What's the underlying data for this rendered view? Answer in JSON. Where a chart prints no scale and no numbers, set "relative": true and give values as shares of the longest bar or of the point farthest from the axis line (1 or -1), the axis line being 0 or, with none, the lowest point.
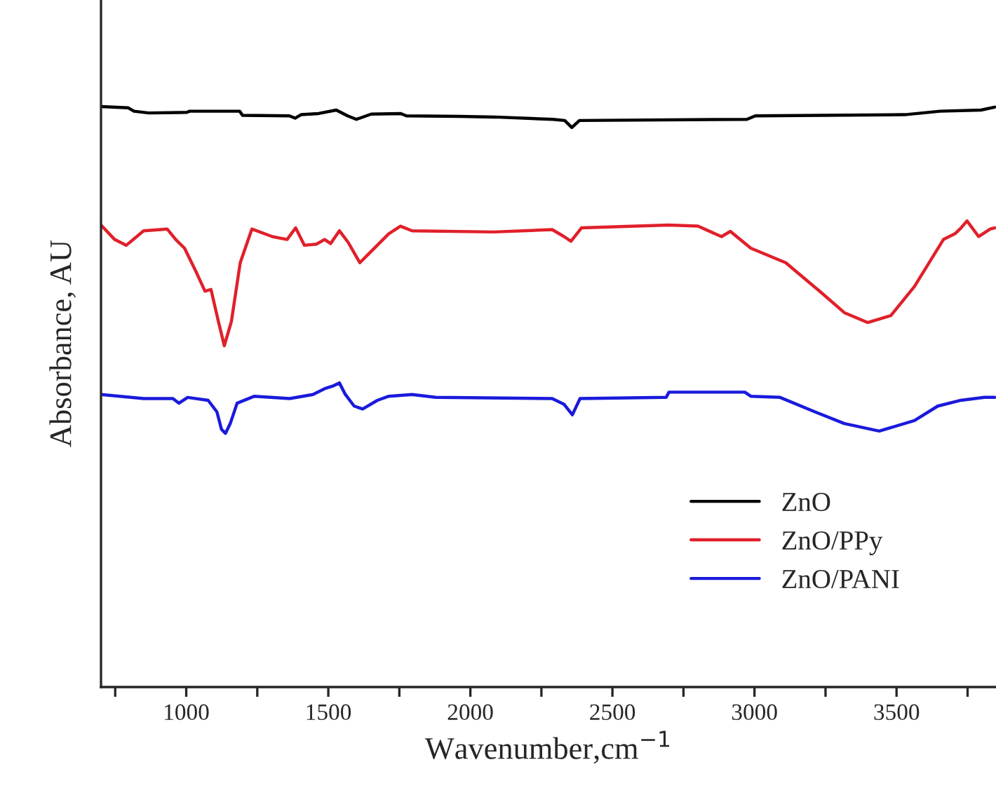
{
  "chart_data": {
    "type": "line",
    "relative": true,
    "xlabel": "Wavenumber,cm$^{−1}$",
    "ylabel": "Absorbance, AU",
    "xlim": [
      700,
      3850
    ],
    "xticks": [
      {
        "value": 750,
        "label": null
      },
      1000,
      {
        "value": 1250,
        "label": null
      },
      1500,
      {
        "value": 1750,
        "label": null
      },
      2000,
      {
        "value": 2250,
        "label": null
      },
      2500,
      {
        "value": 2750,
        "label": null
      },
      3000,
      {
        "value": 3250,
        "label": null
      },
      3500,
      {
        "value": 3750,
        "label": null
      }
    ],
    "legend": "bottom right",
    "grid": false,
    "series": [
      {
        "name": "ZnO",
        "color": "#000000",
        "x": [
          700,
          795,
          816,
          868,
          1002,
          1012,
          1188,
          1198,
          1363,
          1383,
          1404,
          1466,
          1528,
          1568,
          1599,
          1651,
          1755,
          1775,
          1961,
          2085,
          2291,
          2332,
          2357,
          2384,
          2973,
          3003,
          3529,
          3653,
          3797,
          3845
        ],
        "values": [
          1,
          0.998,
          0.992,
          0.989,
          0.99,
          0.992,
          0.992,
          0.985,
          0.984,
          0.98,
          0.986,
          0.988,
          0.994,
          0.984,
          0.978,
          0.987,
          0.988,
          0.984,
          0.983,
          0.982,
          0.978,
          0.976,
          0.964,
          0.976,
          0.978,
          0.984,
          0.986,
          0.992,
          0.994,
          0.999
        ]
      },
      {
        "name": "ZnO/PPy",
        "color": "#e0202a",
        "x": [
          700,
          748,
          789,
          850,
          933,
          963,
          994,
          1035,
          1066,
          1087,
          1113,
          1134,
          1159,
          1190,
          1231,
          1303,
          1355,
          1385,
          1416,
          1458,
          1487,
          1508,
          1539,
          1570,
          1611,
          1652,
          1713,
          1754,
          1795,
          2083,
          2288,
          2330,
          2354,
          2391,
          2698,
          2801,
          2884,
          2915,
          2987,
          3110,
          3234,
          3316,
          3398,
          3480,
          3563,
          3665,
          3706,
          3727,
          3748,
          3789,
          3830,
          3845
        ],
        "values": [
          0.796,
          0.771,
          0.761,
          0.786,
          0.789,
          0.771,
          0.756,
          0.715,
          0.682,
          0.685,
          0.63,
          0.588,
          0.63,
          0.731,
          0.789,
          0.776,
          0.771,
          0.791,
          0.761,
          0.763,
          0.771,
          0.764,
          0.786,
          0.766,
          0.731,
          0.751,
          0.781,
          0.794,
          0.786,
          0.784,
          0.788,
          0.776,
          0.768,
          0.791,
          0.796,
          0.794,
          0.776,
          0.785,
          0.756,
          0.731,
          0.68,
          0.645,
          0.628,
          0.64,
          0.69,
          0.771,
          0.781,
          0.791,
          0.803,
          0.776,
          0.789,
          0.791
        ]
      },
      {
        "name": "ZnO/PANI",
        "color": "#1a1adc",
        "x": [
          700,
          850,
          953,
          974,
          1005,
          1077,
          1108,
          1124,
          1138,
          1155,
          1179,
          1240,
          1364,
          1446,
          1487,
          1518,
          1539,
          1560,
          1591,
          1621,
          1673,
          1713,
          1795,
          1878,
          2288,
          2330,
          2359,
          2386,
          2689,
          2699,
          2966,
          2987,
          3090,
          3213,
          3316,
          3439,
          3563,
          3645,
          3727,
          3809,
          3845
        ],
        "values": [
          0.504,
          0.497,
          0.497,
          0.489,
          0.499,
          0.494,
          0.474,
          0.444,
          0.437,
          0.454,
          0.489,
          0.501,
          0.497,
          0.504,
          0.514,
          0.519,
          0.524,
          0.504,
          0.484,
          0.479,
          0.494,
          0.501,
          0.504,
          0.499,
          0.497,
          0.487,
          0.469,
          0.497,
          0.499,
          0.508,
          0.508,
          0.501,
          0.499,
          0.474,
          0.454,
          0.441,
          0.459,
          0.484,
          0.494,
          0.499,
          0.499
        ]
      }
    ]
  }
}
